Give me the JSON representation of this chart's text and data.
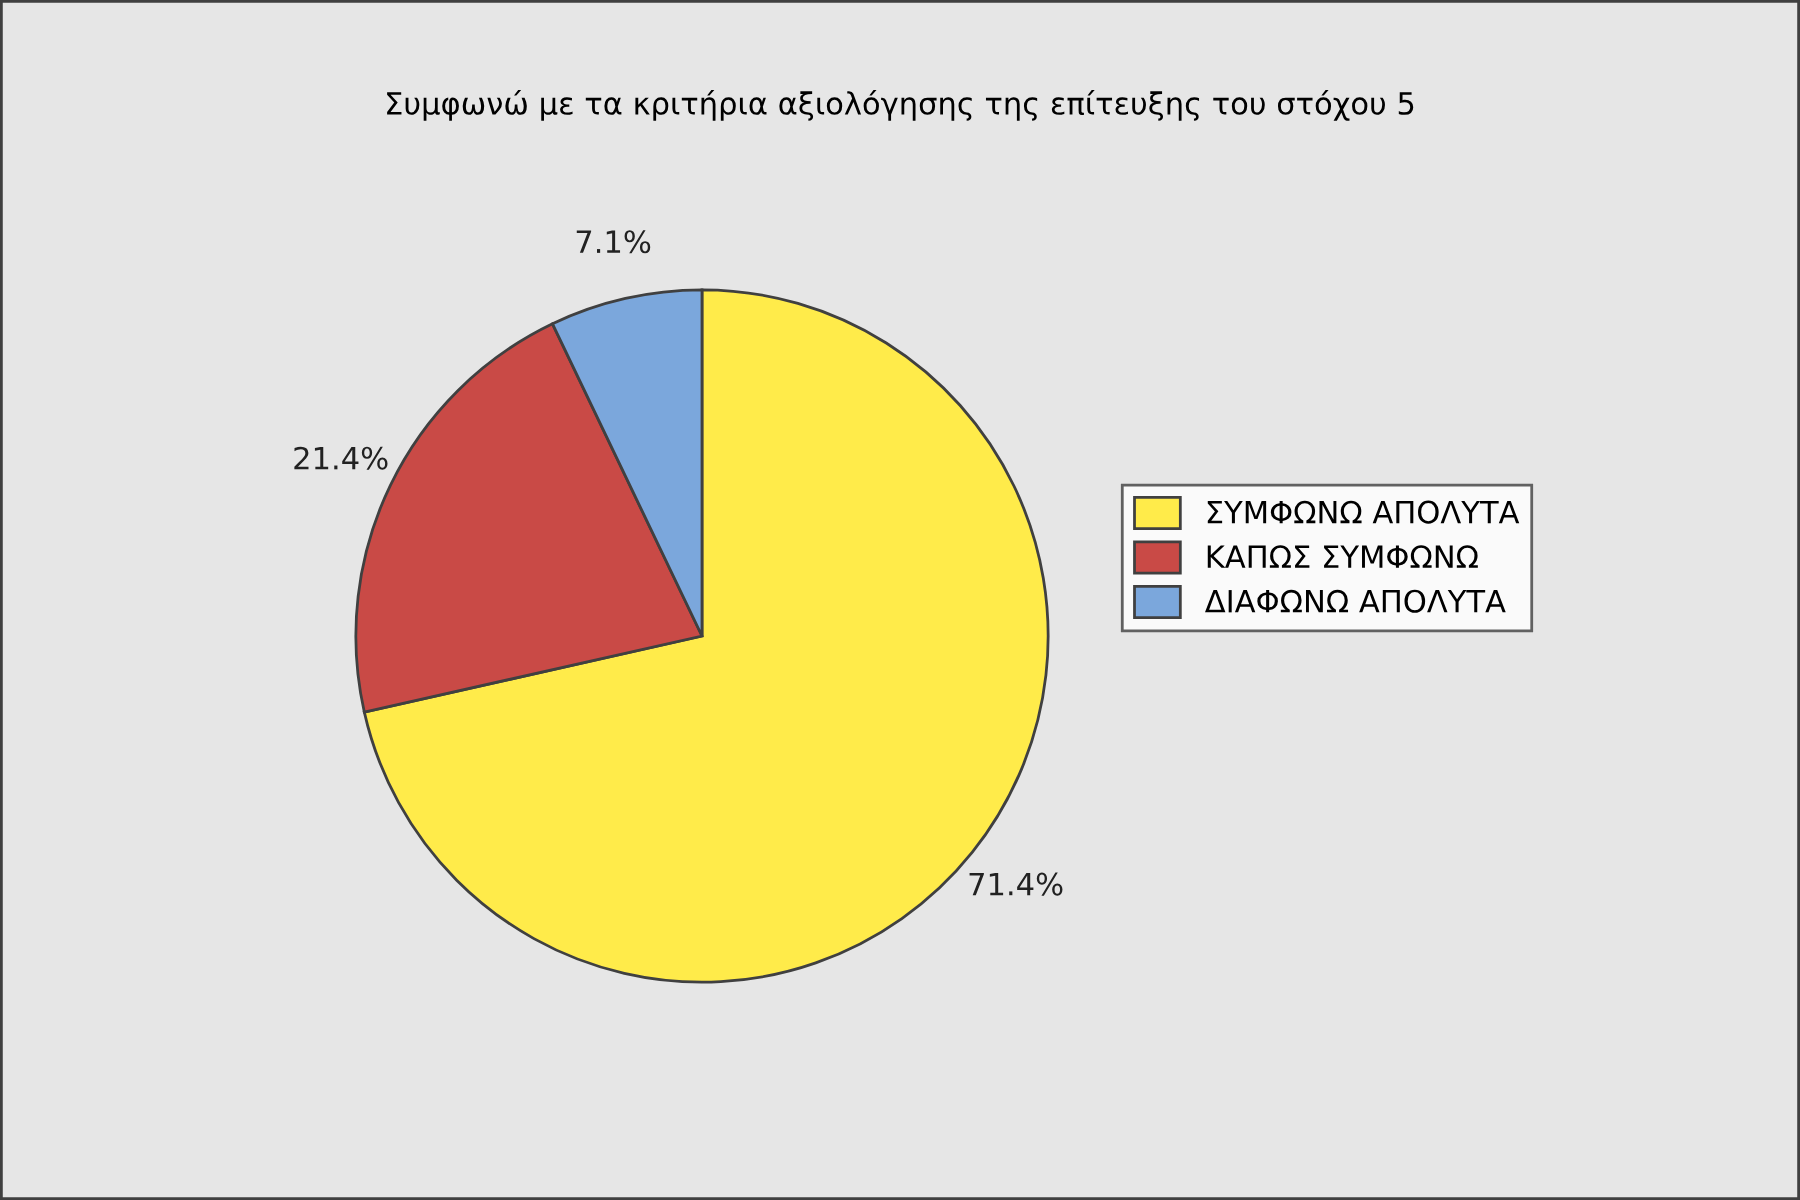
{
  "chart_data": {
    "type": "pie",
    "title": "Συμφωνώ με τα κριτήρια αξιολόγησης της επίτευξης του στόχου 5",
    "categories": [
      "ΣΥΜΦΩΝΩ ΑΠΟΛΥΤΑ",
      "ΚΑΠΩΣ ΣΥΜΦΩΝΩ",
      "ΔΙΑΦΩΝΩ ΑΠΟΛΥΤΑ"
    ],
    "values": [
      71.4,
      21.4,
      7.1
    ],
    "value_labels": [
      "71.4%",
      "21.4%",
      "7.1%"
    ],
    "colors": [
      "#ffeb4a",
      "#c94a46",
      "#7ba7dc"
    ],
    "legend": "right"
  }
}
